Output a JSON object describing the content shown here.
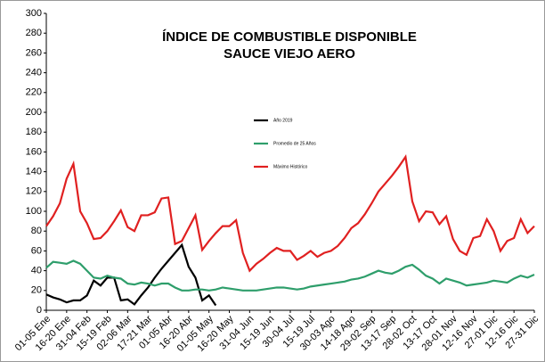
{
  "chart_data": {
    "type": "line",
    "title": "ÍNDICE DE COMBUSTIBLE DISPONIBLE",
    "subtitle": "SAUCE VIEJO AERO",
    "categories": [
      "01-05 Ene",
      null,
      null,
      "16-20 Ene",
      null,
      null,
      "31-04 Feb",
      null,
      null,
      "15-19 Feb",
      null,
      null,
      "02-06 Mar",
      null,
      null,
      "17-21 Mar",
      null,
      null,
      "01-05 Abr",
      null,
      null,
      "16-20 Abr",
      null,
      null,
      "01-05 May",
      null,
      null,
      "16-20 May",
      null,
      null,
      "31-04 Jun",
      null,
      null,
      "15-19 Jun",
      null,
      null,
      "30-04 Jul",
      null,
      null,
      "15-19 Jul",
      null,
      null,
      "30-03 Ago",
      null,
      null,
      "14-18 Ago",
      null,
      null,
      "29-02 Sep",
      null,
      null,
      "13-17 Sep",
      null,
      null,
      "28-02 Oct",
      null,
      null,
      "13-17 Oct",
      null,
      null,
      "28-01 Nov",
      null,
      null,
      "12-16 Nov",
      null,
      null,
      "27-01 Dic",
      null,
      null,
      "12-16 Dic",
      null,
      null,
      "27-31 Dic"
    ],
    "series": [
      {
        "name": "Año 2019",
        "color": "#000000",
        "values": [
          16,
          13,
          11,
          8,
          10,
          10,
          15,
          30,
          25,
          33,
          33,
          10,
          11,
          6,
          15,
          23,
          33,
          42,
          50,
          58,
          66,
          44,
          33,
          10,
          15,
          5,
          null,
          null,
          null,
          null,
          null,
          null,
          null,
          null,
          null,
          null,
          null,
          null,
          null,
          null,
          null,
          null,
          null,
          null,
          null,
          null,
          null,
          null,
          null,
          null,
          null,
          null,
          null,
          null,
          null,
          null,
          null,
          null,
          null,
          null,
          null,
          null,
          null,
          null,
          null,
          null,
          null,
          null,
          null,
          null,
          null,
          null,
          null
        ]
      },
      {
        "name": "Promedio de 25 Años",
        "color": "#2e9e6b",
        "values": [
          43,
          49,
          48,
          47,
          50,
          47,
          40,
          33,
          32,
          35,
          33,
          32,
          27,
          26,
          28,
          27,
          25,
          27,
          27,
          23,
          20,
          20,
          21,
          21,
          20,
          21,
          23,
          22,
          21,
          20,
          20,
          20,
          21,
          22,
          23,
          23,
          22,
          21,
          22,
          24,
          25,
          26,
          27,
          28,
          29,
          31,
          32,
          34,
          37,
          40,
          38,
          37,
          40,
          44,
          46,
          41,
          35,
          32,
          27,
          32,
          30,
          28,
          25,
          26,
          27,
          28,
          30,
          29,
          28,
          32,
          35,
          33,
          36
        ]
      },
      {
        "name": "Máximo Histórico",
        "color": "#e02020",
        "values": [
          85,
          95,
          108,
          133,
          148,
          100,
          88,
          72,
          73,
          80,
          90,
          101,
          84,
          80,
          96,
          96,
          99,
          113,
          114,
          67,
          70,
          83,
          96,
          61,
          70,
          78,
          85,
          85,
          91,
          58,
          40,
          47,
          52,
          58,
          63,
          60,
          60,
          51,
          55,
          60,
          54,
          58,
          60,
          65,
          73,
          83,
          88,
          97,
          108,
          120,
          128,
          136,
          145,
          155,
          110,
          90,
          100,
          99,
          87,
          95,
          72,
          60,
          56,
          73,
          75,
          92,
          80,
          60,
          70,
          73,
          92,
          78,
          85
        ]
      }
    ],
    "ylim": [
      0,
      300
    ],
    "yticks": [
      0,
      20,
      40,
      60,
      80,
      100,
      120,
      140,
      160,
      180,
      200,
      220,
      240,
      260,
      280,
      300
    ],
    "grid": false,
    "legend": "center"
  }
}
